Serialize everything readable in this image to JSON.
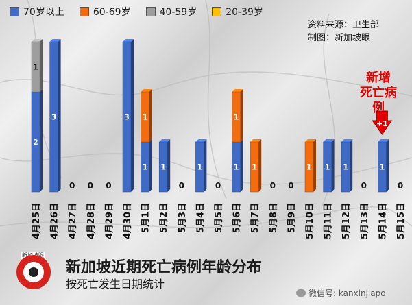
{
  "legend": [
    {
      "label": "70岁以上",
      "color": "#3f6bc7"
    },
    {
      "label": "60-69岁",
      "color": "#f26d0f"
    },
    {
      "label": "40-59岁",
      "color": "#9e9e9e"
    },
    {
      "label": "20-39岁",
      "color": "#ffc000"
    }
  ],
  "source": {
    "line1": "资料来源：卫生部",
    "line2": "制图：新加坡眼"
  },
  "callout": {
    "line1": "新增",
    "line2": "死亡病例",
    "badge": "+1"
  },
  "title": "新加坡近期死亡病例年龄分布",
  "subtitle": "按死亡发生日期统计",
  "logo_text": "新加坡眼",
  "wechat": "微信号: kanxinjiapo",
  "colors": {
    "c70": "#3f6bc7",
    "c60": "#f26d0f",
    "c40": "#9e9e9e",
    "c20": "#ffc000",
    "arrow": "#e00000"
  },
  "chart_data": {
    "type": "bar",
    "stacked": true,
    "categories": [
      "4月25日",
      "4月26日",
      "4月27日",
      "4月28日",
      "4月29日",
      "4月30日",
      "5月1日",
      "5月2日",
      "5月3日",
      "5月4日",
      "5月5日",
      "5月6日",
      "5月7日",
      "5月8日",
      "5月9日",
      "5月10日",
      "5月11日",
      "5月12日",
      "5月13日",
      "5月14日",
      "5月15日"
    ],
    "series": [
      {
        "name": "70岁以上",
        "color": "#3f6bc7",
        "values": [
          2,
          3,
          0,
          0,
          0,
          3,
          1,
          1,
          0,
          1,
          0,
          1,
          0,
          0,
          0,
          0,
          1,
          1,
          0,
          1,
          0
        ]
      },
      {
        "name": "60-69岁",
        "color": "#f26d0f",
        "values": [
          0,
          0,
          0,
          0,
          0,
          0,
          1,
          0,
          0,
          0,
          0,
          1,
          1,
          0,
          0,
          1,
          0,
          0,
          0,
          0,
          0
        ]
      },
      {
        "name": "40-59岁",
        "color": "#9e9e9e",
        "values": [
          1,
          0,
          0,
          0,
          0,
          0,
          0,
          0,
          0,
          0,
          0,
          0,
          0,
          0,
          0,
          0,
          0,
          0,
          0,
          0,
          0
        ]
      },
      {
        "name": "20-39岁",
        "color": "#ffc000",
        "values": [
          0,
          0,
          0,
          0,
          0,
          0,
          0,
          0,
          0,
          0,
          0,
          0,
          0,
          0,
          0,
          0,
          0,
          0,
          0,
          0,
          0
        ]
      }
    ],
    "zero_labels": "0",
    "ylim": [
      0,
      3
    ]
  }
}
